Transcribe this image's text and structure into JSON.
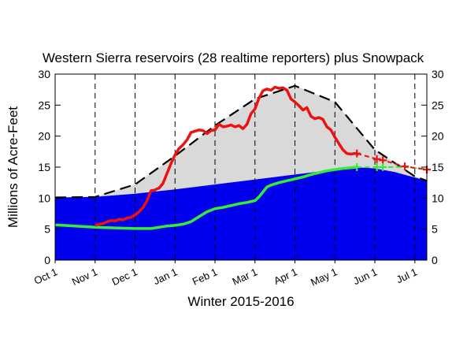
{
  "chart_data": {
    "type": "area",
    "title": "Western Sierra reservoirs (28 realtime reporters) plus Snowpack",
    "xlabel": "Winter 2015-2016",
    "ylabel": "Millions of Acre-Feet",
    "ylim": [
      0,
      30
    ],
    "yticks": [
      0,
      5,
      10,
      15,
      20,
      25,
      30
    ],
    "yticks_right": true,
    "categories": [
      "Oct 1",
      "Nov 1",
      "Dec 1",
      "Jan 1",
      "Feb 1",
      "Mar 1",
      "Apr 1",
      "May 1",
      "Jun 1",
      "Jul 1"
    ],
    "month_gridlines": true,
    "colors": {
      "blue_area": "#0000ee",
      "gray_area": "#d9d9d9",
      "black_dashed": "#000000",
      "red": "#ee1111",
      "green": "#33ee33"
    },
    "series": [
      {
        "name": "",
        "style": "blue-filled-area",
        "x": [
          0,
          1,
          2,
          3,
          4,
          5,
          6,
          7,
          7.5,
          8,
          8.5,
          9.3
        ],
        "values": [
          10.1,
          10.2,
          10.7,
          11.4,
          12.2,
          13.0,
          13.8,
          14.6,
          15.0,
          14.8,
          14.2,
          12.8
        ]
      },
      {
        "name": "",
        "style": "black-dashed-envelope-gray-fill",
        "x": [
          0,
          1,
          2,
          3,
          4,
          5,
          6,
          7,
          8,
          9,
          9.3
        ],
        "values": [
          10.1,
          10.2,
          12.2,
          16.8,
          21.7,
          26.0,
          28.1,
          25.5,
          17.8,
          13.5,
          12.8
        ]
      },
      {
        "name": "",
        "style": "red-line-solid-then-dashed-with-plus-markers",
        "x": [
          1.0,
          1.1,
          1.2,
          1.3,
          1.4,
          1.5,
          1.6,
          1.7,
          1.8,
          1.9,
          2.0,
          2.1,
          2.2,
          2.3,
          2.4,
          2.5,
          2.55,
          2.6,
          2.7,
          2.8,
          2.9,
          3.0,
          3.1,
          3.2,
          3.3,
          3.4,
          3.5,
          3.6,
          3.7,
          3.8,
          3.9,
          4.0,
          4.1,
          4.2,
          4.3,
          4.4,
          4.5,
          4.6,
          4.7,
          4.8,
          4.9,
          5.0,
          5.1,
          5.2,
          5.3,
          5.4,
          5.5,
          5.6,
          5.7,
          5.8,
          5.9,
          6.0,
          6.1,
          6.2,
          6.3,
          6.4,
          6.5,
          6.6,
          6.7,
          6.8,
          6.9,
          7.0,
          7.1,
          7.2,
          7.3,
          7.4,
          7.5,
          7.6
        ],
        "values": [
          5.6,
          5.8,
          5.9,
          6.2,
          6.4,
          6.3,
          6.6,
          6.5,
          6.8,
          6.9,
          7.3,
          7.8,
          8.5,
          9.6,
          11.2,
          11.3,
          11.5,
          11.6,
          12.4,
          14.0,
          15.6,
          17.0,
          18.0,
          18.6,
          19.4,
          20.6,
          20.8,
          21.0,
          20.9,
          20.4,
          20.9,
          21.0,
          21.9,
          21.5,
          21.6,
          21.8,
          21.5,
          21.7,
          21.2,
          21.9,
          23.6,
          24.4,
          26.1,
          27.3,
          27.6,
          27.4,
          27.9,
          27.7,
          27.8,
          27.4,
          26.0,
          25.5,
          24.9,
          24.2,
          24.6,
          23.2,
          22.8,
          23.0,
          22.7,
          21.5,
          21.0,
          19.8,
          18.8,
          17.8,
          17.2,
          17.1,
          17.2,
          17.1
        ],
        "forecast_x": [
          7.55,
          8.05,
          8.2,
          8.75,
          9.3
        ],
        "forecast_values": [
          17.2,
          16.3,
          16.1,
          15.1,
          14.6
        ]
      },
      {
        "name": "",
        "style": "green-line-solid-then-dashed-with-plus-markers",
        "x": [
          0,
          0.5,
          1.0,
          1.5,
          2.0,
          2.4,
          2.6,
          2.8,
          3.0,
          3.2,
          3.4,
          3.6,
          3.8,
          4.0,
          4.2,
          4.4,
          4.6,
          4.8,
          5.0,
          5.1,
          5.2,
          5.3,
          5.4,
          5.6,
          5.8,
          6.0,
          6.2,
          6.4,
          6.6,
          6.8,
          7.0,
          7.2,
          7.4,
          7.55
        ],
        "values": [
          5.7,
          5.5,
          5.3,
          5.2,
          5.1,
          5.1,
          5.3,
          5.5,
          5.6,
          5.8,
          6.2,
          7.0,
          7.8,
          8.3,
          8.5,
          8.8,
          9.1,
          9.3,
          9.6,
          10.2,
          11.0,
          11.8,
          12.1,
          12.5,
          12.8,
          13.1,
          13.4,
          13.8,
          14.1,
          14.4,
          14.6,
          14.8,
          14.9,
          15.0
        ],
        "forecast_x": [
          7.55,
          8.05,
          8.2,
          8.75,
          9.3
        ],
        "forecast_values": [
          15.0,
          15.0,
          15.0,
          15.0,
          14.7
        ]
      }
    ],
    "forecast_markers": [
      {
        "x": 7.55,
        "color": "#ee1111",
        "y": 17.2
      },
      {
        "x": 8.05,
        "color": "#ee1111",
        "y": 16.3
      },
      {
        "x": 8.2,
        "color": "#ee1111",
        "y": 16.1
      },
      {
        "x": 8.75,
        "color": "#ee1111",
        "y": 15.1
      },
      {
        "x": 9.3,
        "color": "#ee1111",
        "y": 14.6
      },
      {
        "x": 7.55,
        "color": "#33ee33",
        "y": 15.0
      },
      {
        "x": 8.05,
        "color": "#33ee33",
        "y": 15.0
      },
      {
        "x": 8.2,
        "color": "#33ee33",
        "y": 15.0
      }
    ]
  }
}
